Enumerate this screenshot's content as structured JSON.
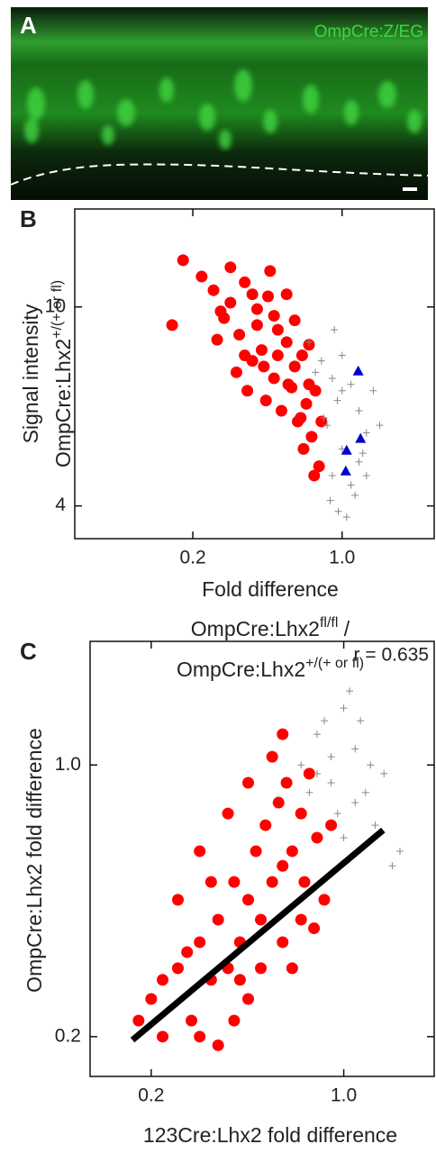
{
  "panel_a": {
    "label": "A",
    "caption": "OmpCre:Z/EG"
  },
  "chart_data": [
    {
      "type": "scatter",
      "panel": "B",
      "log_x": true,
      "log_y": true,
      "xlim": [
        0.056,
        2.7
      ],
      "ylim": [
        3.44,
        15.7
      ],
      "xticks": [
        0.2,
        {
          "value": 1,
          "label": "1.0"
        }
      ],
      "yticks": [
        4,
        10
      ],
      "xlabel": [
        "Fold difference",
        {
          "text": "OmpCre:Lhx2",
          "sup": "fl/fl",
          "after": " /"
        },
        {
          "text": "OmpCre:Lhx2",
          "sup": "+/(+ or fl)"
        }
      ],
      "ylabel": [
        "Signal intensity",
        {
          "text": "OmpCre:Lhx2",
          "sup": "+/(+ or fl)"
        }
      ],
      "series": [
        {
          "color": "#ff0000",
          "marker": "circle",
          "x": [
            0.18,
            0.16,
            0.22,
            0.25,
            0.3,
            0.35,
            0.28,
            0.33,
            0.4,
            0.45,
            0.38,
            0.42,
            0.5,
            0.55,
            0.48,
            0.36,
            0.44,
            0.6,
            0.65,
            0.58,
            0.52,
            0.7,
            0.62,
            0.68,
            0.75,
            0.72,
            0.66,
            0.78,
            0.8,
            0.3,
            0.26,
            0.32,
            0.46,
            0.55,
            0.4,
            0.5,
            0.35,
            0.6,
            0.43,
            0.56,
            0.7,
            0.27,
            0.38,
            0.48,
            0.64,
            0.74
          ],
          "values": [
            12.4,
            9.2,
            11.5,
            10.8,
            12.0,
            11.2,
            9.5,
            8.8,
            9.9,
            10.5,
            7.8,
            8.2,
            9.0,
            8.5,
            7.2,
            6.8,
            6.5,
            7.6,
            8.0,
            6.9,
            6.2,
            7.0,
            5.9,
            6.4,
            6.8,
            5.5,
            5.2,
            4.8,
            5.9,
            10.2,
            8.6,
            7.4,
            11.8,
            10.6,
            9.2,
            8.0,
            8.0,
            9.4,
            7.6,
            7.0,
            8.4,
            9.8,
            10.6,
            9.6,
            6.0,
            4.6
          ]
        },
        {
          "color": "#888888",
          "marker": "plus",
          "x": [
            0.7,
            0.8,
            0.9,
            1.0,
            0.95,
            1.1,
            1.2,
            0.85,
            1.0,
            1.3,
            0.9,
            1.1,
            1.2,
            1.4,
            0.88,
            1.05,
            1.15,
            0.75,
            1.3,
            0.92,
            1.0,
            0.82,
            1.25,
            1.5,
            0.96
          ],
          "values": [
            8.5,
            7.8,
            7.2,
            8.0,
            6.5,
            7.0,
            6.2,
            5.8,
            5.2,
            5.6,
            4.6,
            4.4,
            4.9,
            6.8,
            4.1,
            3.8,
            4.2,
            7.4,
            4.6,
            9.0,
            6.8,
            6.0,
            5.1,
            5.8,
            3.9
          ]
        },
        {
          "color": "#0000cc",
          "marker": "triangle",
          "x": [
            1.19,
            1.22,
            1.05,
            1.04
          ],
          "values": [
            7.45,
            5.46,
            5.17,
            4.7
          ]
        }
      ]
    },
    {
      "type": "scatter",
      "panel": "C",
      "log_x": true,
      "log_y": true,
      "xlim": [
        0.12,
        2.13
      ],
      "ylim": [
        0.158,
        2.08
      ],
      "xticks": [
        0.2,
        {
          "value": 1,
          "label": "1.0"
        }
      ],
      "yticks": [
        0.2,
        {
          "value": 1,
          "label": "1.0"
        }
      ],
      "xlabel": [
        "123Cre:Lhx2 fold difference"
      ],
      "ylabel": [
        "OmpCre:Lhx2 fold difference"
      ],
      "annotation": "r = 0.635",
      "series": [
        {
          "color": "#ff0000",
          "marker": "circle",
          "x": [
            0.2,
            0.22,
            0.25,
            0.28,
            0.3,
            0.33,
            0.35,
            0.38,
            0.4,
            0.42,
            0.45,
            0.48,
            0.5,
            0.52,
            0.55,
            0.58,
            0.6,
            0.62,
            0.65,
            0.7,
            0.72,
            0.75,
            0.8,
            0.85,
            0.9,
            0.3,
            0.35,
            0.4,
            0.45,
            0.25,
            0.3,
            0.38,
            0.45,
            0.55,
            0.6,
            0.5,
            0.6,
            0.7,
            0.27,
            0.33,
            0.22,
            0.42,
            0.65,
            0.78,
            0.18
          ],
          "values": [
            0.25,
            0.2,
            0.3,
            0.22,
            0.35,
            0.28,
            0.4,
            0.3,
            0.5,
            0.35,
            0.45,
            0.6,
            0.4,
            0.7,
            0.5,
            0.8,
            0.55,
            0.9,
            0.6,
            0.75,
            0.5,
            0.95,
            0.65,
            0.45,
            0.7,
            0.2,
            0.19,
            0.22,
            0.25,
            0.45,
            0.6,
            0.75,
            0.9,
            1.05,
            1.2,
            0.3,
            0.35,
            0.4,
            0.33,
            0.5,
            0.28,
            0.28,
            0.3,
            0.38,
            0.22
          ]
        },
        {
          "color": "#888888",
          "marker": "plus",
          "x": [
            0.7,
            0.8,
            0.9,
            1.0,
            1.1,
            0.95,
            1.2,
            1.3,
            1.5,
            1.05,
            0.85,
            1.15,
            0.75,
            1.0,
            1.25,
            0.9,
            1.4,
            0.8,
            1.1,
            1.6
          ],
          "values": [
            1.0,
            1.2,
            0.9,
            1.4,
            1.1,
            0.75,
            0.85,
            0.7,
            0.55,
            1.55,
            1.3,
            1.3,
            0.85,
            0.65,
            1.0,
            1.05,
            0.95,
            0.95,
            0.8,
            0.6
          ]
        }
      ],
      "fit": {
        "color": "#000000",
        "x": [
          0.171,
          1.39
        ],
        "values": [
          0.196,
          0.68
        ]
      }
    }
  ]
}
